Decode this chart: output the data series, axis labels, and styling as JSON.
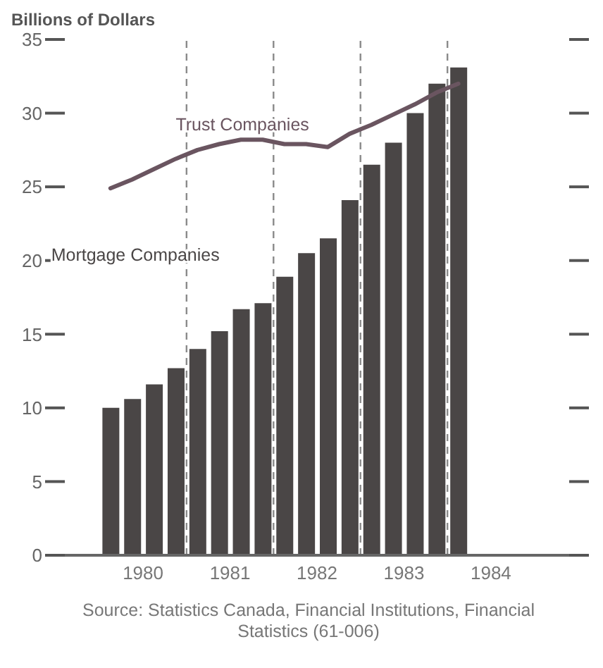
{
  "chart_data": {
    "type": "bar",
    "ylabel": "Billions of Dollars",
    "x": [
      1980.125,
      1980.375,
      1980.625,
      1980.875,
      1981.125,
      1981.375,
      1981.625,
      1981.875,
      1982.125,
      1982.375,
      1982.625,
      1982.875,
      1983.125,
      1983.375,
      1983.625,
      1983.875,
      1984.125
    ],
    "series": [
      {
        "name": "Mortgage Companies",
        "color": "#4a4646",
        "values": [
          10.0,
          10.6,
          11.6,
          12.7,
          14.0,
          15.2,
          16.7,
          17.1,
          18.9,
          20.5,
          21.5,
          24.1,
          26.5,
          28.0,
          30.0,
          32.0,
          33.1
        ]
      },
      {
        "name": "Trust Companies",
        "type": "line",
        "color": "#6a5560",
        "values": [
          24.9,
          25.5,
          26.2,
          26.9,
          27.5,
          27.9,
          28.2,
          28.2,
          27.9,
          27.9,
          27.7,
          28.6,
          29.2,
          29.9,
          30.6,
          31.4,
          32.0
        ]
      }
    ],
    "xlim": [
      1979.6,
      1985.4
    ],
    "xticks": [
      {
        "value": 1980.5,
        "label": "1980"
      },
      {
        "value": 1981.5,
        "label": "1981"
      },
      {
        "value": 1982.5,
        "label": "1982"
      },
      {
        "value": 1983.5,
        "label": "1983"
      },
      {
        "value": 1984.5,
        "label": "1984"
      }
    ],
    "ylim": [
      0,
      35
    ],
    "yticks": [
      0,
      5,
      10,
      15,
      20,
      25,
      30,
      35
    ],
    "ref_lines": [
      {
        "axis": "x",
        "value": 1981,
        "color": "#8a8a8a",
        "line_style": "dashed"
      },
      {
        "axis": "x",
        "value": 1982,
        "color": "#8a8a8a",
        "line_style": "dashed"
      },
      {
        "axis": "x",
        "value": 1983,
        "color": "#8a8a8a",
        "line_style": "dashed"
      },
      {
        "axis": "x",
        "value": 1984,
        "color": "#8a8a8a",
        "line_style": "dashed"
      }
    ],
    "grid": false,
    "legend": false,
    "marker": "none",
    "line_style": "solid",
    "annotations": [
      "Source: Statistics Canada, Financial Institutions, Financial Statistics (61-006)"
    ]
  }
}
